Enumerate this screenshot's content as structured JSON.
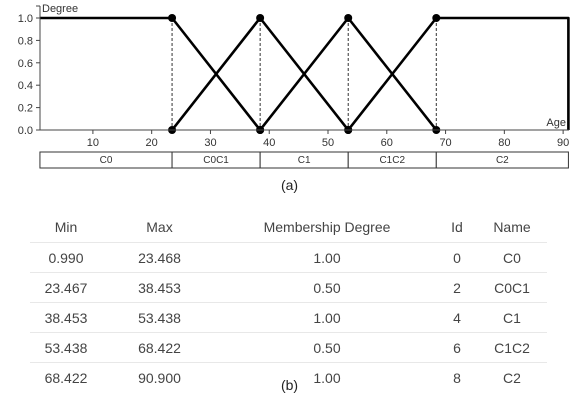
{
  "chart_data": {
    "type": "line",
    "ylabel": "Degree",
    "xlabel": "Age",
    "xlim": [
      1,
      91
    ],
    "ylim": [
      0,
      1
    ],
    "xticks": [
      10,
      20,
      30,
      40,
      50,
      60,
      70,
      80,
      90
    ],
    "yticks": [
      "0.0",
      "0.2",
      "0.4",
      "0.6",
      "0.8",
      "1.0"
    ],
    "series": [
      {
        "label": "C0",
        "points": [
          [
            0.99,
            1
          ],
          [
            23.468,
            1
          ],
          [
            38.453,
            0
          ]
        ]
      },
      {
        "label": "C0C1",
        "points": [
          [
            23.468,
            0
          ],
          [
            38.453,
            1
          ],
          [
            53.438,
            0
          ]
        ]
      },
      {
        "label": "C1C2",
        "points": [
          [
            38.453,
            0
          ],
          [
            53.438,
            1
          ],
          [
            68.422,
            0
          ]
        ]
      },
      {
        "label": "C2",
        "points": [
          [
            53.438,
            0
          ],
          [
            68.422,
            1
          ],
          [
            90.9,
            1
          ],
          [
            90.9,
            0
          ]
        ]
      }
    ],
    "dashed_x": [
      23.468,
      38.453,
      53.438,
      68.422
    ],
    "segments": [
      {
        "label": "C0",
        "from": 0.99,
        "to": 23.468
      },
      {
        "label": "C0C1",
        "from": 23.468,
        "to": 38.453
      },
      {
        "label": "C1",
        "from": 38.453,
        "to": 53.438
      },
      {
        "label": "C1C2",
        "from": 53.438,
        "to": 68.422
      },
      {
        "label": "C2",
        "from": 68.422,
        "to": 90.9
      }
    ]
  },
  "captions": {
    "a": "(a)",
    "b": "(b)"
  },
  "table": {
    "headers": {
      "min": "Min",
      "max": "Max",
      "degree": "Membership Degree",
      "id": "Id",
      "name": "Name"
    },
    "rows": [
      {
        "min": "0.990",
        "max": "23.468",
        "degree": "1.00",
        "id": "0",
        "name": "C0"
      },
      {
        "min": "23.467",
        "max": "38.453",
        "degree": "0.50",
        "id": "2",
        "name": "C0C1"
      },
      {
        "min": "38.453",
        "max": "53.438",
        "degree": "1.00",
        "id": "4",
        "name": "C1"
      },
      {
        "min": "53.438",
        "max": "68.422",
        "degree": "0.50",
        "id": "6",
        "name": "C1C2"
      },
      {
        "min": "68.422",
        "max": "90.900",
        "degree": "1.00",
        "id": "8",
        "name": "C2"
      }
    ]
  }
}
